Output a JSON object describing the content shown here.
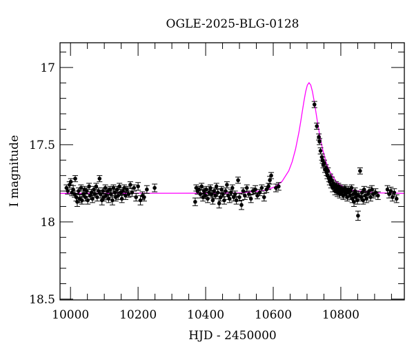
{
  "chart_data": {
    "type": "scatter",
    "title": "OGLE-2025-BLG-0128",
    "xlabel": "HJD - 2450000",
    "ylabel": "I magnitude",
    "xlim": [
      9969,
      10988
    ],
    "ylim": [
      18.505,
      16.84
    ],
    "y_inverted": true,
    "grid": false,
    "legend": "none",
    "x_ticks": [
      10000,
      10200,
      10400,
      10600,
      10800
    ],
    "x_tick_labels": [
      "10000",
      "10200",
      "10400",
      "10600",
      "10800"
    ],
    "x_minor_step": 50,
    "y_ticks": [
      17,
      17.5,
      18,
      18.5
    ],
    "y_tick_labels": [
      "17",
      "17.5",
      "18",
      "18.5"
    ],
    "y_minor_step": 0.1,
    "colors": {
      "data": "#000000",
      "model": "#ff00ff",
      "axes": "#000000"
    },
    "series": [
      {
        "kind": "points_with_errorbars",
        "columns": [
          "HJD-2450000",
          "I",
          "err"
        ],
        "points": [
          [
            9988,
            17.78,
            0.02
          ],
          [
            9992,
            17.8,
            0.02
          ],
          [
            9997,
            17.76,
            0.02
          ],
          [
            10001,
            17.74,
            0.02
          ],
          [
            10004,
            17.81,
            0.02
          ],
          [
            10008,
            17.79,
            0.025
          ],
          [
            10012,
            17.82,
            0.02
          ],
          [
            10014,
            17.72,
            0.02
          ],
          [
            10017,
            17.84,
            0.025
          ],
          [
            10020,
            17.87,
            0.03
          ],
          [
            10024,
            17.8,
            0.02
          ],
          [
            10027,
            17.85,
            0.025
          ],
          [
            10031,
            17.78,
            0.02
          ],
          [
            10034,
            17.86,
            0.025
          ],
          [
            10038,
            17.82,
            0.02
          ],
          [
            10041,
            17.79,
            0.02
          ],
          [
            10044,
            17.84,
            0.025
          ],
          [
            10048,
            17.8,
            0.02
          ],
          [
            10051,
            17.86,
            0.025
          ],
          [
            10055,
            17.77,
            0.02
          ],
          [
            10058,
            17.83,
            0.025
          ],
          [
            10062,
            17.81,
            0.02
          ],
          [
            10065,
            17.85,
            0.025
          ],
          [
            10069,
            17.79,
            0.02
          ],
          [
            10072,
            17.82,
            0.02
          ],
          [
            10076,
            17.77,
            0.02
          ],
          [
            10079,
            17.84,
            0.025
          ],
          [
            10083,
            17.8,
            0.02
          ],
          [
            10086,
            17.72,
            0.02
          ],
          [
            10089,
            17.82,
            0.025
          ],
          [
            10093,
            17.86,
            0.03
          ],
          [
            10096,
            17.8,
            0.02
          ],
          [
            10099,
            17.84,
            0.025
          ],
          [
            10103,
            17.78,
            0.02
          ],
          [
            10106,
            17.83,
            0.025
          ],
          [
            10110,
            17.8,
            0.02
          ],
          [
            10113,
            17.85,
            0.025
          ],
          [
            10117,
            17.79,
            0.02
          ],
          [
            10120,
            17.82,
            0.02
          ],
          [
            10124,
            17.86,
            0.03
          ],
          [
            10127,
            17.78,
            0.02
          ],
          [
            10131,
            17.81,
            0.02
          ],
          [
            10134,
            17.84,
            0.025
          ],
          [
            10138,
            17.79,
            0.02
          ],
          [
            10141,
            17.83,
            0.025
          ],
          [
            10145,
            17.77,
            0.02
          ],
          [
            10148,
            17.81,
            0.02
          ],
          [
            10152,
            17.85,
            0.025
          ],
          [
            10155,
            17.8,
            0.02
          ],
          [
            10159,
            17.78,
            0.02
          ],
          [
            10163,
            17.83,
            0.025
          ],
          [
            10167,
            17.79,
            0.02
          ],
          [
            10172,
            17.82,
            0.02
          ],
          [
            10177,
            17.76,
            0.02
          ],
          [
            10182,
            17.81,
            0.025
          ],
          [
            10188,
            17.78,
            0.02
          ],
          [
            10194,
            17.84,
            0.025
          ],
          [
            10200,
            17.77,
            0.025
          ],
          [
            10207,
            17.86,
            0.03
          ],
          [
            10213,
            17.83,
            0.025
          ],
          [
            10218,
            17.84,
            0.025
          ],
          [
            10226,
            17.79,
            0.025
          ],
          [
            10249,
            17.78,
            0.025
          ],
          [
            10369,
            17.87,
            0.025
          ],
          [
            10372,
            17.78,
            0.02
          ],
          [
            10376,
            17.8,
            0.02
          ],
          [
            10380,
            17.79,
            0.02
          ],
          [
            10384,
            17.82,
            0.025
          ],
          [
            10388,
            17.77,
            0.02
          ],
          [
            10392,
            17.84,
            0.025
          ],
          [
            10395,
            17.8,
            0.02
          ],
          [
            10399,
            17.83,
            0.02
          ],
          [
            10402,
            17.79,
            0.02
          ],
          [
            10406,
            17.85,
            0.025
          ],
          [
            10410,
            17.81,
            0.02
          ],
          [
            10414,
            17.78,
            0.02
          ],
          [
            10418,
            17.82,
            0.025
          ],
          [
            10421,
            17.86,
            0.025
          ],
          [
            10425,
            17.8,
            0.02
          ],
          [
            10429,
            17.83,
            0.02
          ],
          [
            10432,
            17.77,
            0.02
          ],
          [
            10436,
            17.81,
            0.025
          ],
          [
            10440,
            17.88,
            0.03
          ],
          [
            10444,
            17.84,
            0.025
          ],
          [
            10447,
            17.79,
            0.02
          ],
          [
            10451,
            17.82,
            0.02
          ],
          [
            10455,
            17.86,
            0.025
          ],
          [
            10459,
            17.8,
            0.02
          ],
          [
            10463,
            17.76,
            0.02
          ],
          [
            10467,
            17.83,
            0.025
          ],
          [
            10471,
            17.85,
            0.025
          ],
          [
            10475,
            17.81,
            0.02
          ],
          [
            10479,
            17.78,
            0.02
          ],
          [
            10483,
            17.84,
            0.025
          ],
          [
            10487,
            17.82,
            0.02
          ],
          [
            10491,
            17.86,
            0.025
          ],
          [
            10496,
            17.73,
            0.02
          ],
          [
            10500,
            17.84,
            0.025
          ],
          [
            10506,
            17.89,
            0.03
          ],
          [
            10511,
            17.8,
            0.02
          ],
          [
            10516,
            17.83,
            0.025
          ],
          [
            10522,
            17.78,
            0.02
          ],
          [
            10528,
            17.82,
            0.02
          ],
          [
            10534,
            17.85,
            0.025
          ],
          [
            10540,
            17.8,
            0.02
          ],
          [
            10547,
            17.79,
            0.025
          ],
          [
            10553,
            17.83,
            0.02
          ],
          [
            10560,
            17.81,
            0.02
          ],
          [
            10566,
            17.78,
            0.02
          ],
          [
            10573,
            17.84,
            0.025
          ],
          [
            10580,
            17.79,
            0.02
          ],
          [
            10586,
            17.77,
            0.02
          ],
          [
            10590,
            17.73,
            0.025
          ],
          [
            10594,
            17.7,
            0.02
          ],
          [
            10608,
            17.78,
            0.025
          ],
          [
            10616,
            17.77,
            0.025
          ],
          [
            10722,
            17.24,
            0.02
          ],
          [
            10729,
            17.38,
            0.02
          ],
          [
            10735,
            17.45,
            0.02
          ],
          [
            10737,
            17.48,
            0.02
          ],
          [
            10740,
            17.54,
            0.02
          ],
          [
            10744,
            17.58,
            0.02
          ],
          [
            10746,
            17.6,
            0.02
          ],
          [
            10748,
            17.63,
            0.02
          ],
          [
            10751,
            17.62,
            0.02
          ],
          [
            10753,
            17.66,
            0.02
          ],
          [
            10756,
            17.65,
            0.02
          ],
          [
            10758,
            17.68,
            0.02
          ],
          [
            10760,
            17.7,
            0.02
          ],
          [
            10762,
            17.67,
            0.02
          ],
          [
            10765,
            17.72,
            0.02
          ],
          [
            10767,
            17.74,
            0.02
          ],
          [
            10769,
            17.71,
            0.02
          ],
          [
            10771,
            17.76,
            0.02
          ],
          [
            10774,
            17.73,
            0.02
          ],
          [
            10776,
            17.78,
            0.025
          ],
          [
            10778,
            17.75,
            0.02
          ],
          [
            10781,
            17.77,
            0.02
          ],
          [
            10783,
            17.8,
            0.025
          ],
          [
            10786,
            17.76,
            0.02
          ],
          [
            10788,
            17.79,
            0.02
          ],
          [
            10790,
            17.81,
            0.025
          ],
          [
            10793,
            17.77,
            0.02
          ],
          [
            10795,
            17.8,
            0.02
          ],
          [
            10797,
            17.82,
            0.025
          ],
          [
            10800,
            17.78,
            0.02
          ],
          [
            10802,
            17.81,
            0.02
          ],
          [
            10805,
            17.79,
            0.02
          ],
          [
            10807,
            17.83,
            0.025
          ],
          [
            10809,
            17.8,
            0.02
          ],
          [
            10812,
            17.78,
            0.02
          ],
          [
            10814,
            17.82,
            0.025
          ],
          [
            10817,
            17.8,
            0.02
          ],
          [
            10819,
            17.84,
            0.025
          ],
          [
            10822,
            17.79,
            0.02
          ],
          [
            10824,
            17.81,
            0.02
          ],
          [
            10827,
            17.83,
            0.025
          ],
          [
            10829,
            17.8,
            0.02
          ],
          [
            10832,
            17.78,
            0.02
          ],
          [
            10834,
            17.85,
            0.025
          ],
          [
            10837,
            17.82,
            0.02
          ],
          [
            10839,
            17.87,
            0.03
          ],
          [
            10842,
            17.8,
            0.02
          ],
          [
            10844,
            17.84,
            0.025
          ],
          [
            10846,
            17.82,
            0.02
          ],
          [
            10849,
            17.86,
            0.025
          ],
          [
            10851,
            17.96,
            0.03
          ],
          [
            10853,
            17.83,
            0.025
          ],
          [
            10857,
            17.67,
            0.02
          ],
          [
            10860,
            17.84,
            0.025
          ],
          [
            10863,
            17.81,
            0.02
          ],
          [
            10866,
            17.86,
            0.025
          ],
          [
            10869,
            17.79,
            0.02
          ],
          [
            10872,
            17.83,
            0.025
          ],
          [
            10876,
            17.85,
            0.025
          ],
          [
            10880,
            17.82,
            0.02
          ],
          [
            10884,
            17.8,
            0.025
          ],
          [
            10888,
            17.84,
            0.025
          ],
          [
            10892,
            17.79,
            0.025
          ],
          [
            10896,
            17.82,
            0.025
          ],
          [
            10903,
            17.81,
            0.025
          ],
          [
            10910,
            17.83,
            0.025
          ],
          [
            10938,
            17.79,
            0.025
          ],
          [
            10943,
            17.82,
            0.025
          ],
          [
            10948,
            17.8,
            0.025
          ],
          [
            10953,
            17.84,
            0.025
          ],
          [
            10958,
            17.81,
            0.025
          ],
          [
            10965,
            17.85,
            0.025
          ]
        ]
      },
      {
        "kind": "model_line",
        "x": [
          9969,
          10400,
          10506,
          10576,
          10606,
          10626,
          10646,
          10656,
          10666,
          10676,
          10681,
          10686,
          10691,
          10696,
          10701,
          10706,
          10711,
          10716,
          10721,
          10726,
          10731,
          10736,
          10746,
          10756,
          10766,
          10786,
          10806,
          10836,
          10906,
          10988
        ],
        "y": [
          17.815,
          17.814,
          17.812,
          17.796,
          17.772,
          17.738,
          17.669,
          17.611,
          17.529,
          17.42,
          17.355,
          17.285,
          17.217,
          17.156,
          17.114,
          17.099,
          17.114,
          17.156,
          17.217,
          17.285,
          17.355,
          17.42,
          17.529,
          17.611,
          17.669,
          17.738,
          17.772,
          17.796,
          17.812,
          17.815
        ]
      }
    ]
  }
}
